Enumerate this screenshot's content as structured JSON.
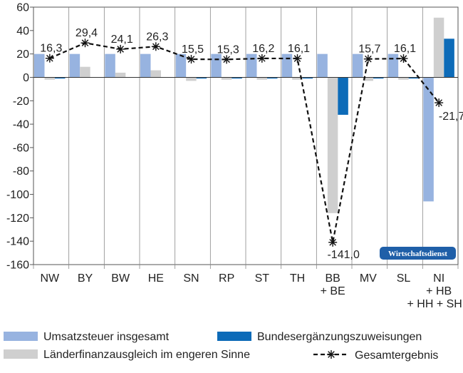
{
  "chart_data": {
    "type": "bar",
    "categories": [
      [
        "NW"
      ],
      [
        "BY"
      ],
      [
        "BW"
      ],
      [
        "HE"
      ],
      [
        "SN"
      ],
      [
        "RP"
      ],
      [
        "ST"
      ],
      [
        "TH"
      ],
      [
        "BB",
        "+ BE"
      ],
      [
        "MV"
      ],
      [
        "SL"
      ],
      [
        "NI",
        "+ HB",
        "+ HH + SH"
      ]
    ],
    "ylim": [
      -160,
      60
    ],
    "yticks": [
      60,
      40,
      20,
      0,
      -20,
      -40,
      -60,
      -80,
      -100,
      -120,
      -140,
      -160
    ],
    "ytick_labels": [
      "60",
      "40",
      "20",
      "0",
      "-20",
      "-40",
      "-60",
      "-80",
      "-100",
      "-120",
      "-140",
      "-160"
    ],
    "grid": "vertical category separators",
    "legend_position": "bottom",
    "series": [
      {
        "name": "Umsatzsteuer insgesamt",
        "kind": "bar",
        "color": "#97b3e0",
        "values": [
          20,
          20,
          20,
          20,
          20,
          20,
          20,
          20,
          20,
          20,
          20,
          -106
        ]
      },
      {
        "name": "Länderfinanzausgleich im engeren Sinne",
        "kind": "bar",
        "color": "#cfcfcf",
        "values": [
          -2,
          9,
          4,
          6,
          -3,
          -2,
          -2,
          -2,
          -116,
          -3,
          -2,
          51
        ]
      },
      {
        "name": "Bundesergänzungszuweisungen",
        "kind": "bar",
        "color": "#0d6bb8",
        "values": [
          -1,
          0,
          0,
          0,
          -1,
          -1,
          -1,
          -1,
          -32,
          -1,
          -1,
          33
        ]
      },
      {
        "name": "Gesamtergebnis",
        "kind": "line",
        "color": "#111111",
        "values": [
          16.3,
          29.4,
          24.1,
          26.3,
          15.5,
          15.3,
          16.2,
          16.1,
          -141.0,
          15.7,
          16.1,
          -21.7
        ],
        "labels": [
          "16,3",
          "29,4",
          "24,1",
          "26,3",
          "15,5",
          "15,3",
          "16,2",
          "16,1",
          "-141,0",
          "15,7",
          "16,1",
          "-21,7"
        ]
      }
    ],
    "legend_order": [
      0,
      2,
      1,
      3
    ],
    "watermark": "Wirtschaftsdienst"
  }
}
